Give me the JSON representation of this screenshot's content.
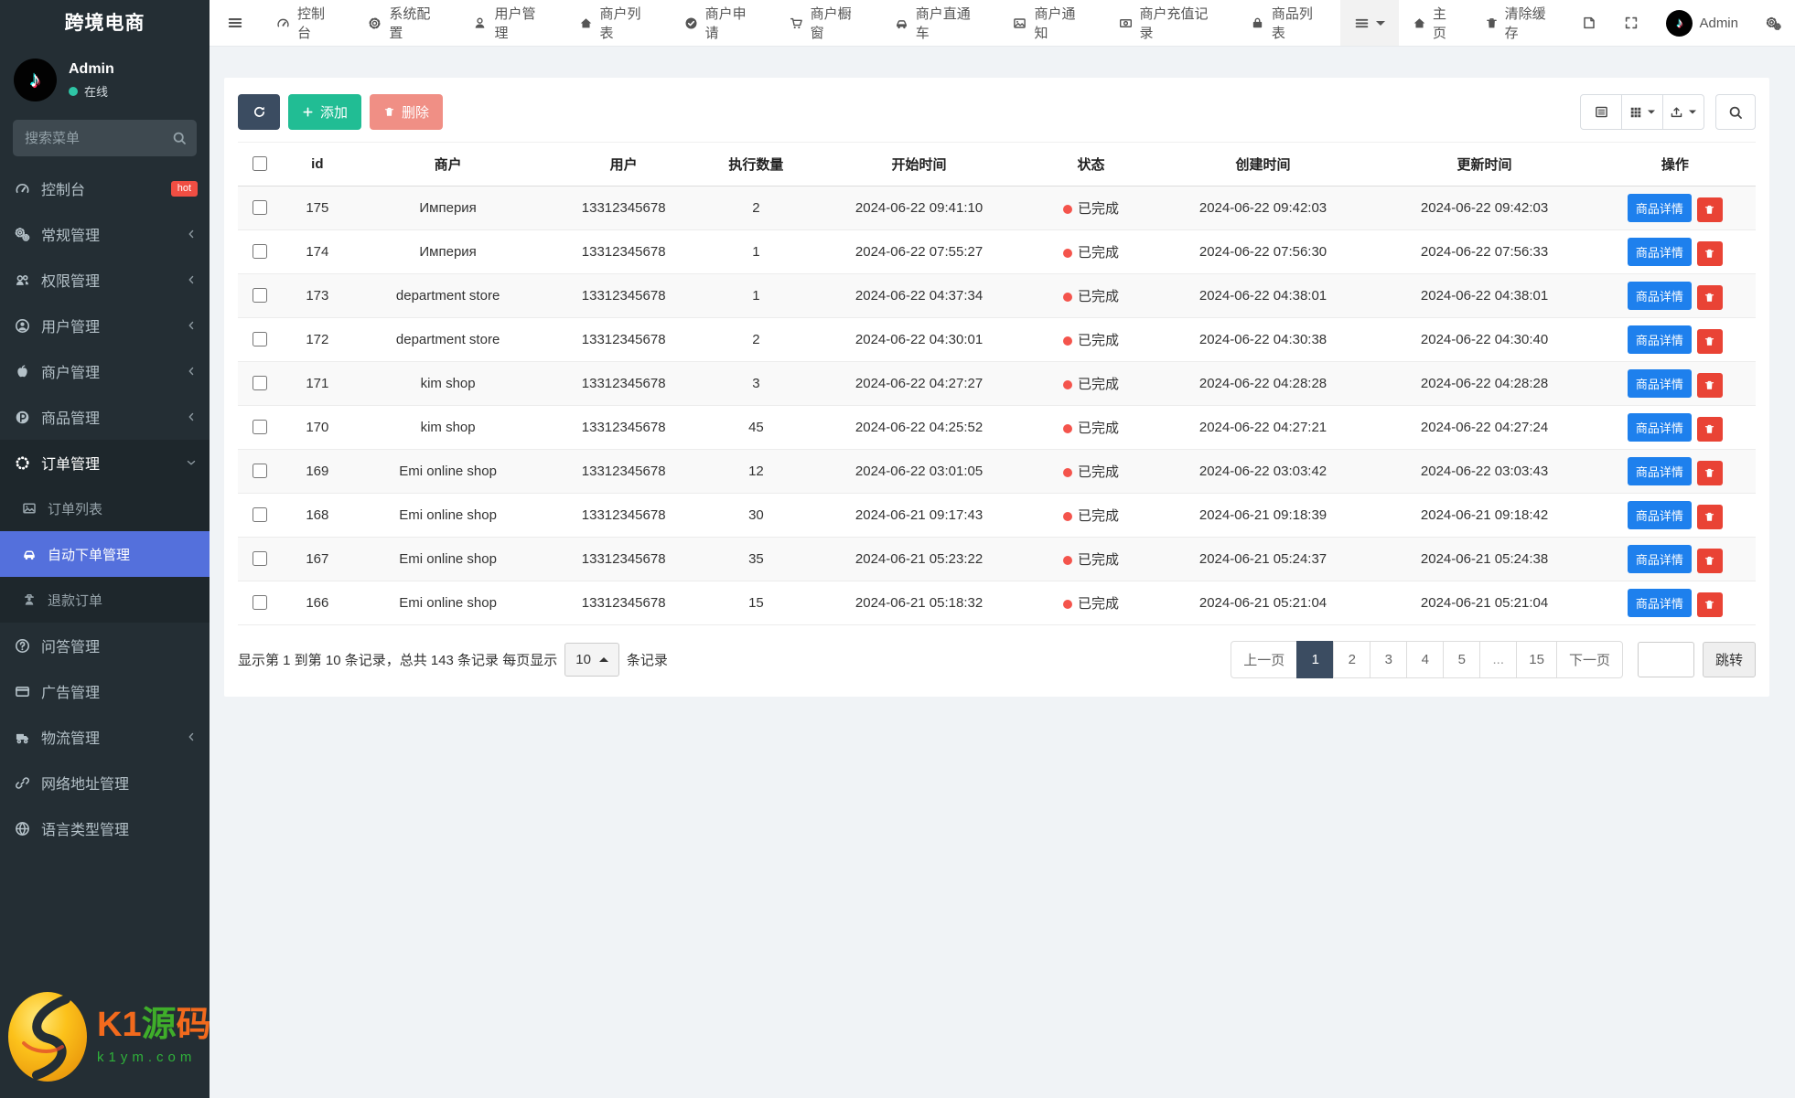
{
  "app": {
    "title": "跨境电商"
  },
  "colors": {
    "sidebar_bg": "#242e34",
    "active_menu": "#5470dc",
    "hot_badge": "#f04e43",
    "online_dot": "#2ec5a5",
    "primary_btn": "#3b4c61",
    "add_btn": "#21bd94",
    "delete_btn": "#e74c3c",
    "status_done": "#f4544c",
    "detail_btn": "#1e80ed",
    "trash_btn": "#e94335",
    "tiktok_teal": "#25f4ee",
    "tiktok_pink": "#fe2c55"
  },
  "sidebar": {
    "user": {
      "name": "Admin",
      "status": "在线"
    },
    "search_placeholder": "搜索菜单",
    "items": [
      {
        "label": "控制台",
        "icon": "gauge",
        "badge": "hot"
      },
      {
        "label": "常规管理",
        "icon": "gears",
        "chevron": true
      },
      {
        "label": "权限管理",
        "icon": "users",
        "chevron": true
      },
      {
        "label": "用户管理",
        "icon": "user-circle",
        "chevron": true
      },
      {
        "label": "商户管理",
        "icon": "apple",
        "chevron": true
      },
      {
        "label": "商品管理",
        "icon": "product",
        "chevron": true
      },
      {
        "label": "订单管理",
        "icon": "spinner",
        "expanded": true,
        "children": [
          {
            "label": "订单列表",
            "icon": "image"
          },
          {
            "label": "自动下单管理",
            "icon": "car",
            "active": true
          },
          {
            "label": "退款订单",
            "icon": "user-secret"
          }
        ]
      },
      {
        "label": "问答管理",
        "icon": "question"
      },
      {
        "label": "广告管理",
        "icon": "card"
      },
      {
        "label": "物流管理",
        "icon": "truck",
        "chevron": true
      },
      {
        "label": "网络地址管理",
        "icon": "link"
      },
      {
        "label": "语言类型管理",
        "icon": "globe"
      }
    ],
    "watermark": {
      "brand_part1": "K1",
      "brand_part2": "源",
      "brand_part3": "码",
      "site": "k1ym.com"
    }
  },
  "topnav": {
    "tabs": [
      {
        "label": "控制台",
        "icon": "gauge"
      },
      {
        "label": "系统配置",
        "icon": "gear"
      },
      {
        "label": "用户管理",
        "icon": "user"
      },
      {
        "label": "商户列表",
        "icon": "home"
      },
      {
        "label": "商户申请",
        "icon": "check-circle"
      },
      {
        "label": "商户橱窗",
        "icon": "cart"
      },
      {
        "label": "商户直通车",
        "icon": "car"
      },
      {
        "label": "商户通知",
        "icon": "image"
      },
      {
        "label": "商户充值记录",
        "icon": "money"
      },
      {
        "label": "商品列表",
        "icon": "bag"
      }
    ],
    "right": {
      "home": "主页",
      "clear_cache": "清除缓存",
      "username": "Admin"
    }
  },
  "toolbar": {
    "add": "添加",
    "delete": "删除"
  },
  "table": {
    "headers": [
      "id",
      "商户",
      "用户",
      "执行数量",
      "开始时间",
      "状态",
      "创建时间",
      "更新时间",
      "操作"
    ],
    "status_label": "已完成",
    "detail_label": "商品详情",
    "rows": [
      {
        "id": "175",
        "merchant": "Империя",
        "user": "13312345678",
        "count": "2",
        "start": "2024-06-22 09:41:10",
        "created": "2024-06-22 09:42:03",
        "updated": "2024-06-22 09:42:03"
      },
      {
        "id": "174",
        "merchant": "Империя",
        "user": "13312345678",
        "count": "1",
        "start": "2024-06-22 07:55:27",
        "created": "2024-06-22 07:56:30",
        "updated": "2024-06-22 07:56:33"
      },
      {
        "id": "173",
        "merchant": "department store",
        "user": "13312345678",
        "count": "1",
        "start": "2024-06-22 04:37:34",
        "created": "2024-06-22 04:38:01",
        "updated": "2024-06-22 04:38:01"
      },
      {
        "id": "172",
        "merchant": "department store",
        "user": "13312345678",
        "count": "2",
        "start": "2024-06-22 04:30:01",
        "created": "2024-06-22 04:30:38",
        "updated": "2024-06-22 04:30:40"
      },
      {
        "id": "171",
        "merchant": "kim shop",
        "user": "13312345678",
        "count": "3",
        "start": "2024-06-22 04:27:27",
        "created": "2024-06-22 04:28:28",
        "updated": "2024-06-22 04:28:28"
      },
      {
        "id": "170",
        "merchant": "kim shop",
        "user": "13312345678",
        "count": "45",
        "start": "2024-06-22 04:25:52",
        "created": "2024-06-22 04:27:21",
        "updated": "2024-06-22 04:27:24"
      },
      {
        "id": "169",
        "merchant": "Emi online shop",
        "user": "13312345678",
        "count": "12",
        "start": "2024-06-22 03:01:05",
        "created": "2024-06-22 03:03:42",
        "updated": "2024-06-22 03:03:43"
      },
      {
        "id": "168",
        "merchant": "Emi online shop",
        "user": "13312345678",
        "count": "30",
        "start": "2024-06-21 09:17:43",
        "created": "2024-06-21 09:18:39",
        "updated": "2024-06-21 09:18:42"
      },
      {
        "id": "167",
        "merchant": "Emi online shop",
        "user": "13312345678",
        "count": "35",
        "start": "2024-06-21 05:23:22",
        "created": "2024-06-21 05:24:37",
        "updated": "2024-06-21 05:24:38"
      },
      {
        "id": "166",
        "merchant": "Emi online shop",
        "user": "13312345678",
        "count": "15",
        "start": "2024-06-21 05:18:32",
        "created": "2024-06-21 05:21:04",
        "updated": "2024-06-21 05:21:04"
      }
    ]
  },
  "pagination": {
    "info_prefix": "显示第 1 到第 10 条记录，总共 143 条记录 每页显示",
    "page_size": "10",
    "info_suffix": "条记录",
    "prev": "上一页",
    "next": "下一页",
    "pages": [
      "1",
      "2",
      "3",
      "4",
      "5",
      "...",
      "15"
    ],
    "active_page": "1",
    "jump": "跳转"
  }
}
